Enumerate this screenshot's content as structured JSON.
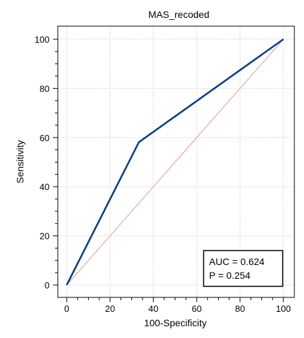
{
  "chart_data": {
    "type": "line",
    "title": "MAS_recoded",
    "xlabel": "100-Specificity",
    "ylabel": "Sensitivity",
    "xlim": [
      0,
      100
    ],
    "ylim": [
      0,
      100
    ],
    "xticks": [
      0,
      20,
      40,
      60,
      80,
      100
    ],
    "yticks": [
      0,
      20,
      40,
      60,
      80,
      100
    ],
    "grid": true,
    "series": [
      {
        "x": [
          0,
          33.3,
          100
        ],
        "y": [
          0,
          58.1,
          100
        ],
        "color": "#0a3d8f"
      },
      {
        "x": [
          0,
          100
        ],
        "y": [
          0,
          100
        ],
        "color": "#e39a9a"
      }
    ],
    "annotation": {
      "auc_text": "AUC = 0.624",
      "p_text": "P = 0.254"
    }
  }
}
